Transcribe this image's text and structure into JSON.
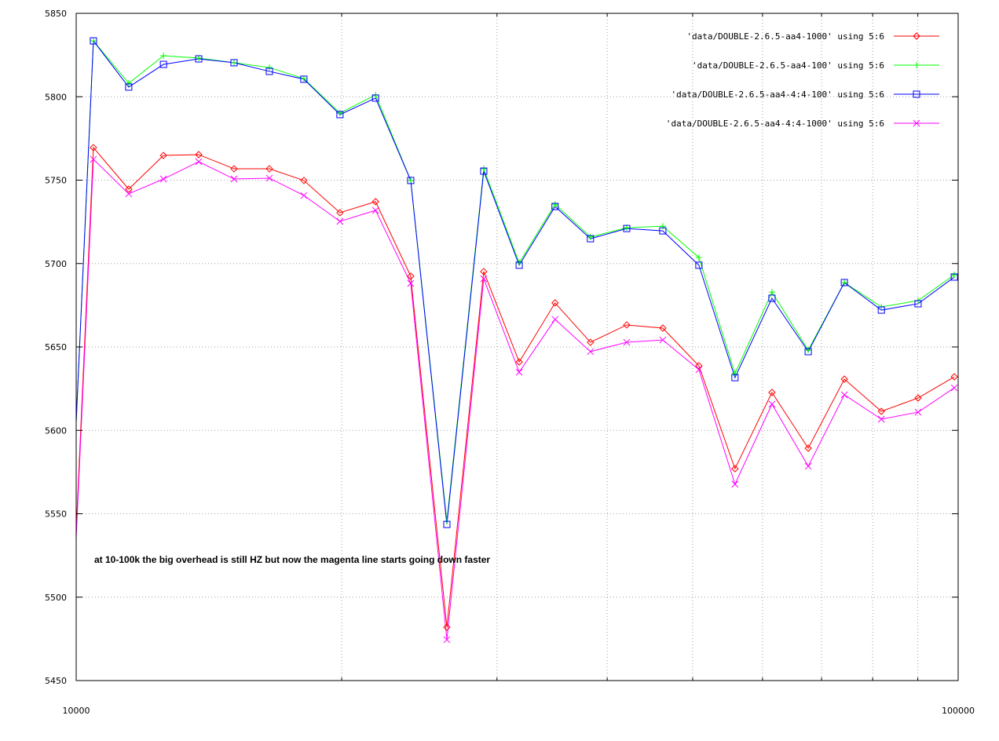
{
  "chart_data": {
    "type": "line",
    "title": "",
    "xlabel": "",
    "ylabel": "",
    "xscale": "log",
    "xlim": [
      10000,
      100000
    ],
    "ylim": [
      5450,
      5850
    ],
    "grid": true,
    "legend_position": "top-right",
    "x_ticks": [
      "10000",
      "100000"
    ],
    "y_ticks": [
      "5450",
      "5500",
      "5550",
      "5600",
      "5650",
      "5700",
      "5750",
      "5800",
      "5850"
    ],
    "annotation": "at 10-100k the big overhead is still HZ but now the magenta line starts going down faster",
    "x": [
      10000,
      10460,
      11470,
      12560,
      13770,
      15100,
      16560,
      18120,
      19910,
      21850,
      23950,
      26320,
      28980,
      31790,
      34910,
      38290,
      42090,
      46250,
      50820,
      55840,
      61500,
      67610,
      74300,
      81830,
      90060,
      99000
    ],
    "series": [
      {
        "name": "'data/DOUBLE-2.6.5-aa4-1000' using 5:6",
        "color": "#ff0000",
        "marker": "diamond",
        "values": [
          5540,
          5769.5,
          5744.6,
          5764.8,
          5765.3,
          5756.8,
          5756.8,
          5749.8,
          5730.5,
          5737.1,
          5692.4,
          5482,
          5695.2,
          5641,
          5676.4,
          5652.8,
          5663.2,
          5661.3,
          5638.7,
          5577,
          5622.7,
          5589.3,
          5630.7,
          5611.4,
          5619.4,
          5632.1
        ]
      },
      {
        "name": "'data/DOUBLE-2.6.5-aa4-100' using 5:6",
        "color": "#00ff00",
        "marker": "plus",
        "values": [
          5605,
          5833.5,
          5808.1,
          5824.6,
          5823.2,
          5820.4,
          5817.5,
          5810.9,
          5790.2,
          5801.1,
          5749.8,
          5545.5,
          5756.8,
          5700.4,
          5735.6,
          5715.9,
          5721.5,
          5722.4,
          5703.6,
          5634,
          5682.9,
          5648.1,
          5688.6,
          5674,
          5677.8,
          5693.3
        ]
      },
      {
        "name": "'data/DOUBLE-2.6.5-aa4-4:4-100' using 5:6",
        "color": "#0000ff",
        "marker": "square",
        "values": [
          5605,
          5833.5,
          5805.8,
          5819.4,
          5822.7,
          5820.4,
          5815.2,
          5810.5,
          5789.3,
          5799.2,
          5749.8,
          5543.6,
          5755.4,
          5699,
          5734.2,
          5714.9,
          5721,
          5719.6,
          5699,
          5631.6,
          5679.2,
          5647.2,
          5688.6,
          5672.1,
          5675.9,
          5691.9
        ]
      },
      {
        "name": "'data/DOUBLE-2.6.5-aa4-4:4-1000' using 5:6",
        "color": "#ff00ff",
        "marker": "cross",
        "values": [
          5535,
          5762.5,
          5741.8,
          5750.7,
          5761.1,
          5750.7,
          5751.2,
          5740.8,
          5725.3,
          5731.9,
          5688.1,
          5474.5,
          5690.9,
          5634.9,
          5666.5,
          5647.2,
          5652.8,
          5654.2,
          5636.4,
          5567.7,
          5615.7,
          5578.5,
          5621.3,
          5606.7,
          5610.9,
          5625.5
        ]
      }
    ]
  }
}
